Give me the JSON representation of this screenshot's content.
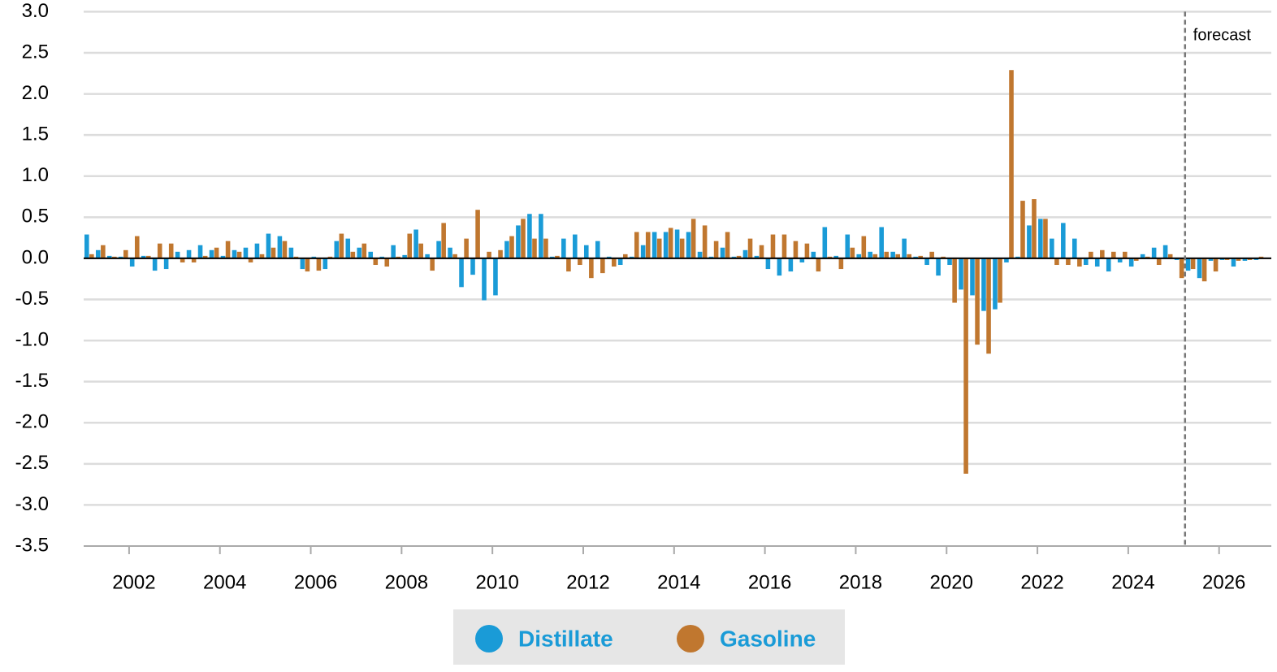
{
  "chart_data": {
    "type": "bar",
    "x": [
      2001,
      2001.25,
      2001.5,
      2001.75,
      2002,
      2002.25,
      2002.5,
      2002.75,
      2003,
      2003.25,
      2003.5,
      2003.75,
      2004,
      2004.25,
      2004.5,
      2004.75,
      2005,
      2005.25,
      2005.5,
      2005.75,
      2006,
      2006.25,
      2006.5,
      2006.75,
      2007,
      2007.25,
      2007.5,
      2007.75,
      2008,
      2008.25,
      2008.5,
      2008.75,
      2009,
      2009.25,
      2009.5,
      2009.75,
      2010,
      2010.25,
      2010.5,
      2010.75,
      2011,
      2011.25,
      2011.5,
      2011.75,
      2012,
      2012.25,
      2012.5,
      2012.75,
      2013,
      2013.25,
      2013.5,
      2013.75,
      2014,
      2014.25,
      2014.5,
      2014.75,
      2015,
      2015.25,
      2015.5,
      2015.75,
      2016,
      2016.25,
      2016.5,
      2016.75,
      2017,
      2017.25,
      2017.5,
      2017.75,
      2018,
      2018.25,
      2018.5,
      2018.75,
      2019,
      2019.25,
      2019.5,
      2019.75,
      2020,
      2020.25,
      2020.5,
      2020.75,
      2021,
      2021.25,
      2021.5,
      2021.75,
      2022,
      2022.25,
      2022.5,
      2022.75,
      2023,
      2023.25,
      2023.5,
      2023.75,
      2024,
      2024.25,
      2024.5,
      2024.75,
      2025,
      2025.25,
      2025.5,
      2025.75,
      2026,
      2026.25,
      2026.5,
      2026.75
    ],
    "series": [
      {
        "name": "Distillate",
        "color": "#1a9bd7",
        "values": [
          0.29,
          0.1,
          0.03,
          0.02,
          -0.1,
          0.03,
          -0.15,
          -0.13,
          0.08,
          0.1,
          0.16,
          0.1,
          0.03,
          0.1,
          0.13,
          0.18,
          0.3,
          0.27,
          0.13,
          -0.13,
          0.02,
          -0.13,
          0.21,
          0.24,
          0.13,
          0.08,
          0.02,
          0.16,
          0.04,
          0.35,
          0.05,
          0.21,
          0.13,
          -0.35,
          -0.2,
          -0.51,
          -0.45,
          0.21,
          0.4,
          0.54,
          0.54,
          0.02,
          0.24,
          0.29,
          0.16,
          0.21,
          0.02,
          -0.08,
          0.02,
          0.16,
          0.32,
          0.32,
          0.35,
          0.32,
          0.08,
          0.02,
          0.13,
          0.02,
          0.1,
          0.03,
          -0.13,
          -0.21,
          -0.16,
          -0.05,
          0.08,
          0.38,
          0.03,
          0.29,
          0.05,
          0.08,
          0.38,
          0.08,
          0.24,
          0.02,
          -0.08,
          -0.21,
          -0.08,
          -0.38,
          -0.45,
          -0.64,
          -0.62,
          -0.05,
          0.02,
          0.4,
          0.48,
          0.24,
          0.43,
          0.24,
          -0.08,
          -0.1,
          -0.16,
          -0.05,
          -0.1,
          0.05,
          0.13,
          0.16,
          -0.02,
          -0.15,
          -0.24,
          -0.03,
          -0.02,
          -0.1,
          -0.03,
          -0.02
        ]
      },
      {
        "name": "Gasoline",
        "color": "#c0772f",
        "values": [
          0.05,
          0.16,
          0.02,
          0.1,
          0.27,
          0.03,
          0.18,
          0.18,
          -0.05,
          -0.05,
          0.03,
          0.13,
          0.21,
          0.08,
          -0.05,
          0.05,
          0.13,
          0.21,
          0.02,
          -0.16,
          -0.15,
          0.02,
          0.3,
          0.08,
          0.18,
          -0.08,
          -0.1,
          0.02,
          0.3,
          0.18,
          -0.15,
          0.43,
          0.05,
          0.24,
          0.59,
          0.08,
          0.1,
          0.27,
          0.48,
          0.24,
          0.24,
          0.03,
          -0.16,
          -0.08,
          -0.24,
          -0.18,
          -0.1,
          0.05,
          0.32,
          0.32,
          0.24,
          0.37,
          0.24,
          0.48,
          0.4,
          0.21,
          0.32,
          0.03,
          0.24,
          0.16,
          0.29,
          0.29,
          0.21,
          0.18,
          -0.16,
          0.02,
          -0.13,
          0.13,
          0.27,
          0.05,
          0.08,
          0.05,
          0.05,
          0.03,
          0.08,
          0.02,
          -0.54,
          -2.62,
          -1.05,
          -1.16,
          -0.54,
          2.29,
          0.7,
          0.72,
          0.48,
          -0.08,
          -0.08,
          -0.1,
          0.08,
          0.1,
          0.08,
          0.08,
          -0.03,
          0.02,
          -0.08,
          0.05,
          -0.24,
          -0.13,
          -0.28,
          -0.16,
          -0.02,
          -0.03,
          -0.02,
          0.02
        ]
      }
    ],
    "xlim": [
      2001,
      2027.15
    ],
    "xticks": [
      2002,
      2004,
      2006,
      2008,
      2010,
      2012,
      2014,
      2016,
      2018,
      2020,
      2022,
      2024,
      2026
    ],
    "ylim": [
      -3.5,
      3
    ],
    "yticks": [
      {
        "value": 3,
        "label": "3.0"
      },
      2.5,
      {
        "value": 2,
        "label": "2.0"
      },
      1.5,
      {
        "value": 1,
        "label": "1.0"
      },
      0.5,
      {
        "value": 0,
        "label": "0.0"
      },
      -0.5,
      {
        "value": -1,
        "label": "-1.0"
      },
      -1.5,
      {
        "value": -2,
        "label": "-2.0"
      },
      -2.5,
      {
        "value": -3,
        "label": "-3.0"
      },
      -3.5
    ],
    "grid": true,
    "annotation": {
      "text": "forecast",
      "x": 2025.25
    },
    "legend": "bottom"
  }
}
